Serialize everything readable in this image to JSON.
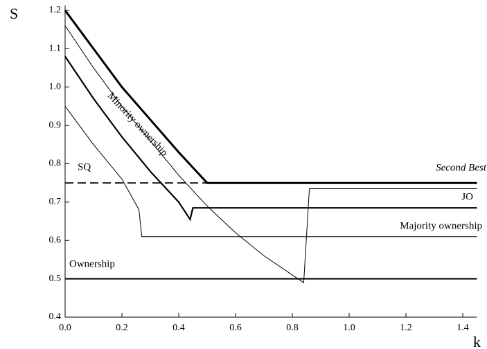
{
  "chart_data": {
    "type": "line",
    "x_label": "k",
    "y_label": "S",
    "xlim": [
      0,
      1.45
    ],
    "ylim": [
      0.4,
      1.2
    ],
    "xticks": [
      {
        "value": 0,
        "label": "0.0"
      },
      0.2,
      0.4,
      0.6,
      0.8,
      {
        "value": 1,
        "label": "1.0"
      },
      1.2,
      1.4
    ],
    "yticks": [
      0.4,
      0.5,
      0.6,
      0.7,
      0.8,
      0.9,
      {
        "value": 1,
        "label": "1.0"
      },
      1.1,
      1.2
    ],
    "series": [
      {
        "name": "Second Best",
        "color": "#000000",
        "width": 3,
        "dashed": false,
        "x": [
          0,
          0.1,
          0.2,
          0.3,
          0.4,
          0.5,
          1.45
        ],
        "values": [
          1.2,
          1.1,
          1.0,
          0.915,
          0.83,
          0.75,
          0.75
        ]
      },
      {
        "name": "Minority ownership",
        "color": "#000000",
        "width": 1,
        "dashed": false,
        "x": [
          0,
          0.1,
          0.2,
          0.3,
          0.4,
          0.5,
          0.6,
          0.7,
          0.8,
          0.84,
          0.86,
          1.45
        ],
        "values": [
          1.16,
          1.05,
          0.95,
          0.86,
          0.77,
          0.69,
          0.62,
          0.56,
          0.51,
          0.49,
          0.735,
          0.735
        ]
      },
      {
        "name": "JO",
        "color": "#000000",
        "width": 2.2,
        "dashed": false,
        "x": [
          0,
          0.1,
          0.2,
          0.3,
          0.4,
          0.44,
          0.45,
          1.45
        ],
        "values": [
          1.08,
          0.97,
          0.87,
          0.78,
          0.7,
          0.655,
          0.685,
          0.685
        ]
      },
      {
        "name": "Majority ownership",
        "color": "#000000",
        "width": 1,
        "dashed": false,
        "x": [
          0,
          0.1,
          0.2,
          0.26,
          0.27,
          1.45
        ],
        "values": [
          0.95,
          0.85,
          0.76,
          0.68,
          0.61,
          0.61
        ]
      },
      {
        "name": "SQ",
        "color": "#000000",
        "width": 1.8,
        "dashed": true,
        "x": [
          0,
          0.5
        ],
        "values": [
          0.75,
          0.75
        ]
      },
      {
        "name": "Ownership",
        "color": "#000000",
        "width": 2,
        "dashed": false,
        "x": [
          0,
          1.45
        ],
        "values": [
          0.5,
          0.5
        ]
      }
    ]
  }
}
